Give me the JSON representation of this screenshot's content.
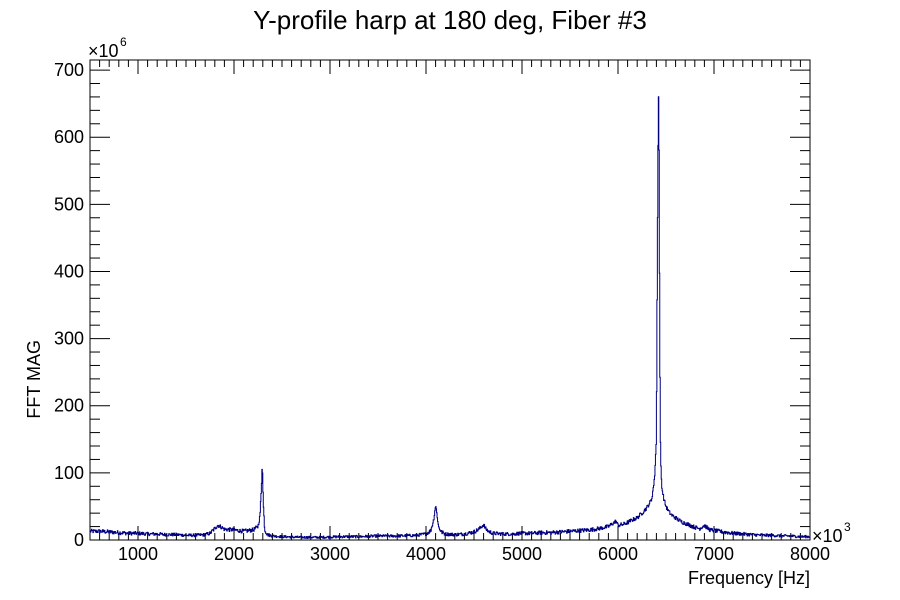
{
  "chart_data": {
    "type": "line",
    "title": "Y-profile harp at 180 deg, Fiber #3",
    "xlabel": "Frequency [Hz]",
    "ylabel": "FFT MAG",
    "x_multiplier_base": "×10",
    "x_multiplier_exp": "3",
    "y_multiplier_base": "×10",
    "y_multiplier_exp": "6",
    "xlim": [
      500,
      8000
    ],
    "ylim": [
      0,
      715
    ],
    "x_ticks": [
      1000,
      2000,
      3000,
      4000,
      5000,
      6000,
      7000,
      8000
    ],
    "y_ticks": [
      0,
      100,
      200,
      300,
      400,
      500,
      600,
      700
    ],
    "grid": false,
    "legend": "none",
    "line_color": "#000080",
    "series": [
      {
        "x": [
          500,
          600,
          700,
          800,
          900,
          1000,
          1100,
          1200,
          1300,
          1400,
          1500,
          1600,
          1700,
          1750,
          1800,
          1830,
          1860,
          1900,
          2000,
          2100,
          2200,
          2250,
          2270,
          2285,
          2295,
          2305,
          2320,
          2350,
          2400,
          2500,
          2700,
          2900,
          3100,
          3300,
          3500,
          3700,
          3900,
          4000,
          4050,
          4080,
          4100,
          4115,
          4130,
          4160,
          4200,
          4300,
          4400,
          4500,
          4550,
          4580,
          4600,
          4620,
          4650,
          4700,
          4800,
          4900,
          5000,
          5100,
          5200,
          5300,
          5400,
          5500,
          5600,
          5700,
          5800,
          5900,
          5950,
          5980,
          6000,
          6050,
          6100,
          6150,
          6200,
          6250,
          6300,
          6350,
          6380,
          6400,
          6410,
          6420,
          6425,
          6430,
          6440,
          6450,
          6460,
          6480,
          6500,
          6530,
          6560,
          6600,
          6650,
          6700,
          6750,
          6800,
          6850,
          6880,
          6900,
          6930,
          6960,
          7000,
          7100,
          7200,
          7300,
          7400,
          7500,
          7600,
          7700,
          7800,
          7900,
          8000
        ],
        "values": [
          13,
          13,
          12,
          11,
          10,
          10,
          9,
          9,
          8,
          8,
          7,
          7,
          8,
          10,
          17,
          22,
          20,
          16,
          15,
          13,
          15,
          20,
          35,
          75,
          118,
          55,
          15,
          8,
          6,
          5,
          4,
          4,
          5,
          5,
          6,
          6,
          7,
          9,
          14,
          30,
          52,
          38,
          20,
          12,
          9,
          8,
          9,
          12,
          16,
          20,
          23,
          17,
          13,
          10,
          9,
          9,
          10,
          10,
          11,
          11,
          12,
          13,
          14,
          15,
          17,
          20,
          25,
          28,
          22,
          23,
          26,
          30,
          33,
          40,
          48,
          60,
          90,
          150,
          430,
          640,
          680,
          480,
          160,
          95,
          75,
          60,
          50,
          42,
          37,
          33,
          28,
          25,
          22,
          19,
          17,
          20,
          22,
          18,
          15,
          14,
          12,
          10,
          9,
          8,
          7,
          7,
          6,
          6,
          5,
          5
        ]
      }
    ]
  }
}
